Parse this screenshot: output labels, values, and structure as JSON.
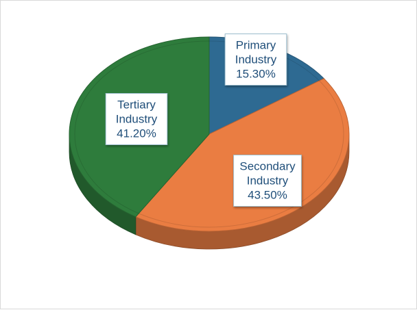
{
  "chart_data": {
    "type": "pie",
    "title": "",
    "slices": [
      {
        "name": "Primary Industry",
        "value": 15.3,
        "label_lines": [
          "Primary",
          "Industry",
          "15.30%"
        ],
        "color": "#2e6a92"
      },
      {
        "name": "Secondary Industry",
        "value": 43.5,
        "label_lines": [
          "Secondary",
          "Industry",
          "43.50%"
        ],
        "color": "#ea7d42"
      },
      {
        "name": "Tertiary Industry",
        "value": 41.2,
        "label_lines": [
          "Tertiary",
          "Industry",
          "41.20%"
        ],
        "color": "#2e7c3c"
      }
    ],
    "start_angle_deg": 0,
    "direction": "clockwise",
    "style": "3d-tilted",
    "label_text_color": "#1f4e79"
  }
}
